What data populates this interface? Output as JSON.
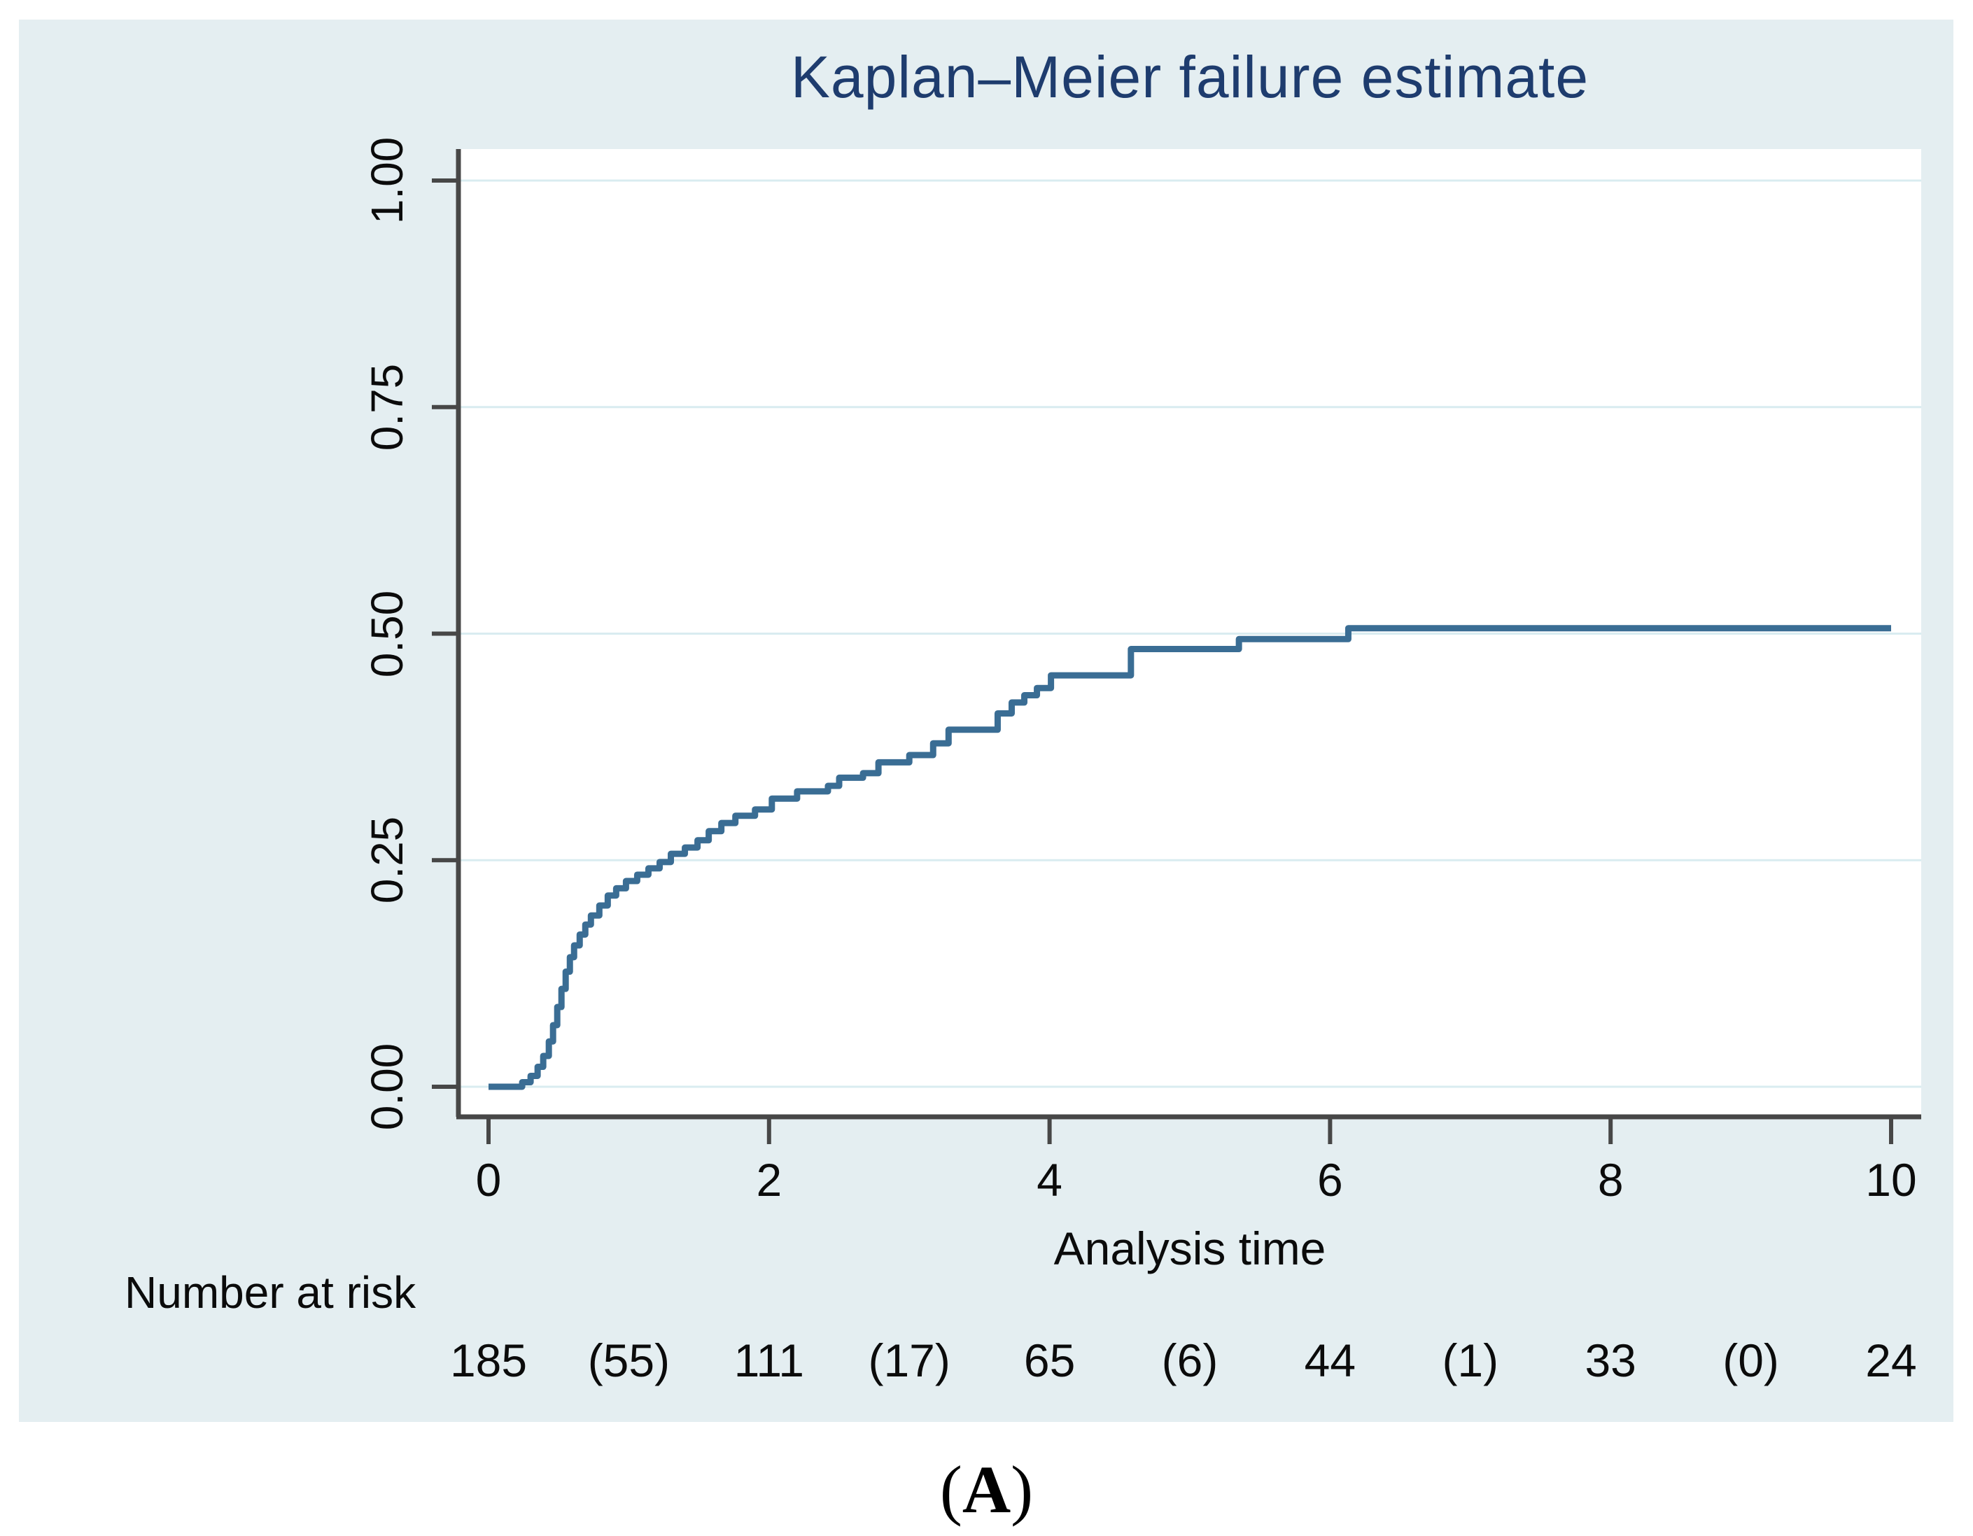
{
  "figure": {
    "caption": {
      "open": "(",
      "letter": "A",
      "close": ")"
    }
  },
  "chart": {
    "title": "Kaplan–Meier failure estimate",
    "xlabel": "Analysis time",
    "risk_label": "Number at risk",
    "colors": {
      "panel_background": "#e4eef1",
      "plot_background": "#ffffff",
      "gridline": "#d9ecf0",
      "axis": "#474747",
      "curve": "#3a6d94",
      "title_text": "#1e3c6e",
      "tick_text": "#0b0b0b"
    }
  },
  "chart_data": {
    "type": "line",
    "subtype": "kaplan-meier-failure-step",
    "title": "Kaplan–Meier failure estimate",
    "xlabel": "Analysis time",
    "ylabel": "",
    "xlim": [
      0,
      10
    ],
    "ylim": [
      0,
      1
    ],
    "xticks": [
      0,
      2,
      4,
      6,
      8,
      10
    ],
    "ytick_values": [
      0,
      0.25,
      0.5,
      0.75,
      1.0
    ],
    "ytick_labels": [
      "0.00",
      "0.25",
      "0.50",
      "0.75",
      "1.00"
    ],
    "grid": true,
    "legend": "none",
    "series": [
      {
        "name": "failure estimate",
        "color": "#3a6d94",
        "step": true,
        "points": [
          [
            0.0,
            0.0
          ],
          [
            0.24,
            0.005
          ],
          [
            0.3,
            0.012
          ],
          [
            0.35,
            0.022
          ],
          [
            0.39,
            0.034
          ],
          [
            0.43,
            0.05
          ],
          [
            0.46,
            0.068
          ],
          [
            0.49,
            0.088
          ],
          [
            0.52,
            0.108
          ],
          [
            0.55,
            0.127
          ],
          [
            0.58,
            0.143
          ],
          [
            0.61,
            0.156
          ],
          [
            0.65,
            0.168
          ],
          [
            0.69,
            0.179
          ],
          [
            0.73,
            0.189
          ],
          [
            0.79,
            0.2
          ],
          [
            0.85,
            0.211
          ],
          [
            0.91,
            0.219
          ],
          [
            0.98,
            0.227
          ],
          [
            1.06,
            0.234
          ],
          [
            1.14,
            0.241
          ],
          [
            1.22,
            0.248
          ],
          [
            1.3,
            0.257
          ],
          [
            1.4,
            0.264
          ],
          [
            1.49,
            0.272
          ],
          [
            1.57,
            0.282
          ],
          [
            1.66,
            0.291
          ],
          [
            1.76,
            0.299
          ],
          [
            1.9,
            0.306
          ],
          [
            2.02,
            0.318
          ],
          [
            2.2,
            0.326
          ],
          [
            2.42,
            0.332
          ],
          [
            2.5,
            0.341
          ],
          [
            2.67,
            0.346
          ],
          [
            2.78,
            0.358
          ],
          [
            3.0,
            0.366
          ],
          [
            3.17,
            0.379
          ],
          [
            3.28,
            0.394
          ],
          [
            3.63,
            0.412
          ],
          [
            3.73,
            0.424
          ],
          [
            3.82,
            0.432
          ],
          [
            3.91,
            0.44
          ],
          [
            4.01,
            0.454
          ],
          [
            4.58,
            0.483
          ],
          [
            5.35,
            0.494
          ],
          [
            6.13,
            0.506
          ],
          [
            10.0,
            0.506
          ]
        ]
      }
    ],
    "number_at_risk": {
      "label": "Number at risk",
      "times": [
        0,
        1,
        2,
        3,
        4,
        5,
        6,
        7,
        8,
        9,
        10
      ],
      "values": [
        "185",
        "(55)",
        "111",
        "(17)",
        "65",
        "(6)",
        "44",
        "(1)",
        "33",
        "(0)",
        "24"
      ]
    }
  }
}
